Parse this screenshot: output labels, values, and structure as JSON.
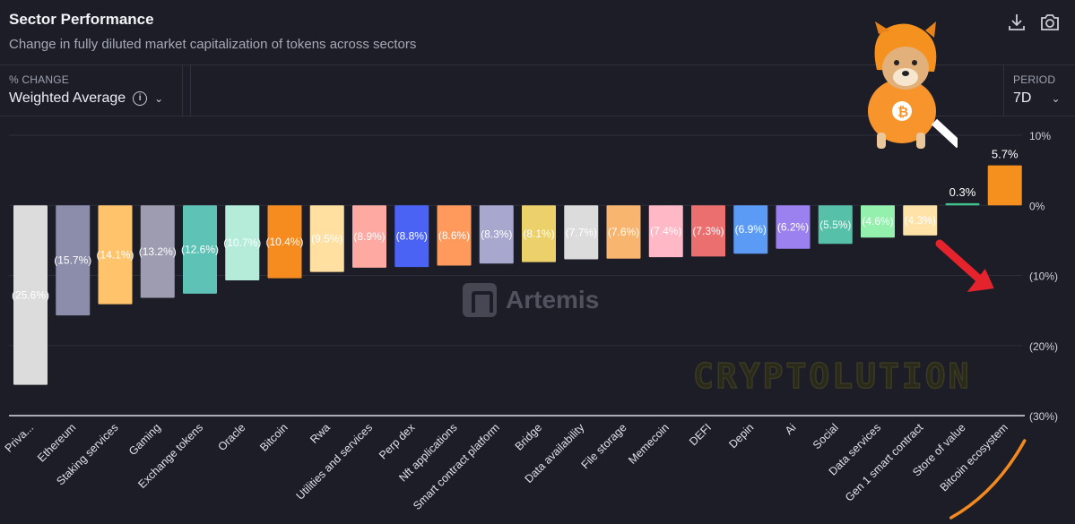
{
  "header": {
    "title": "Sector Performance",
    "subtitle": "Change in fully diluted market capitalization of tokens across sectors"
  },
  "icons": [
    "download-icon",
    "camera-icon",
    "info-icon",
    "chevron-down-icon",
    "bitcoin-icon"
  ],
  "controls": {
    "change_label": "% CHANGE",
    "change_value": "Weighted Average",
    "period_label": "PERIOD",
    "period_value": "7D"
  },
  "watermarks": {
    "artemis": "Artemis",
    "cryptolution": "CRYPTOLUTION"
  },
  "colors": {
    "background": "#1c1d27",
    "highlight": "#f5901e"
  },
  "chart_data": {
    "type": "bar",
    "title": "Sector Performance",
    "ylim": [
      -30,
      10
    ],
    "yticks": [
      10,
      0,
      -10,
      -20,
      -30
    ],
    "ytick_labels": [
      "10%",
      "0%",
      "(10%)",
      "(20%)",
      "(30%)"
    ],
    "grid": true,
    "categories": [
      "Priva...",
      "Ethereum",
      "Staking services",
      "Gaming",
      "Exchange tokens",
      "Oracle",
      "Bitcoin",
      "Rwa",
      "Utilities and services",
      "Perp dex",
      "Nft applications",
      "Smart contract platform",
      "Bridge",
      "Data availability",
      "File storage",
      "Memecoin",
      "DEFI",
      "Depin",
      "Ai",
      "Social",
      "Data services",
      "Gen 1 smart contract",
      "Store of value",
      "Bitcoin ecosystem"
    ],
    "values": [
      -25.6,
      -15.7,
      -14.1,
      -13.2,
      -12.6,
      -10.7,
      -10.4,
      -9.5,
      -8.9,
      -8.8,
      -8.6,
      -8.3,
      -8.1,
      -7.7,
      -7.6,
      -7.4,
      -7.3,
      -6.9,
      -6.2,
      -5.5,
      -4.6,
      -4.3,
      0.3,
      5.7
    ],
    "labels": [
      "(25.6%)",
      "(15.7%)",
      "(14.1%)",
      "(13.2%)",
      "(12.6%)",
      "(10.7%)",
      "(10.4%)",
      "(9.5%)",
      "(8.9%)",
      "(8.8%)",
      "(8.6%)",
      "(8.3%)",
      "(8.1%)",
      "(7.7%)",
      "(7.6%)",
      "(7.4%)",
      "(7.3%)",
      "(6.9%)",
      "(6.2%)",
      "(5.5%)",
      "(4.6%)",
      "(4.3%)",
      "0.3%",
      "5.7%"
    ],
    "bar_colors": [
      "#dcdcdc",
      "#8b8dab",
      "#ffc46b",
      "#9d9cb0",
      "#5ec3b6",
      "#b5ecd9",
      "#f68b1f",
      "#ffe0a0",
      "#ffa9a3",
      "#4b63f5",
      "#ff9a5c",
      "#a8a8cf",
      "#ecd06a",
      "#dcdcdc",
      "#f7b56f",
      "#ffb8c5",
      "#ec6f6f",
      "#5b9bf5",
      "#9b81ef",
      "#56c0a8",
      "#93f0ad",
      "#ffe2a8",
      "#3ec48c",
      "#f5901e"
    ]
  }
}
